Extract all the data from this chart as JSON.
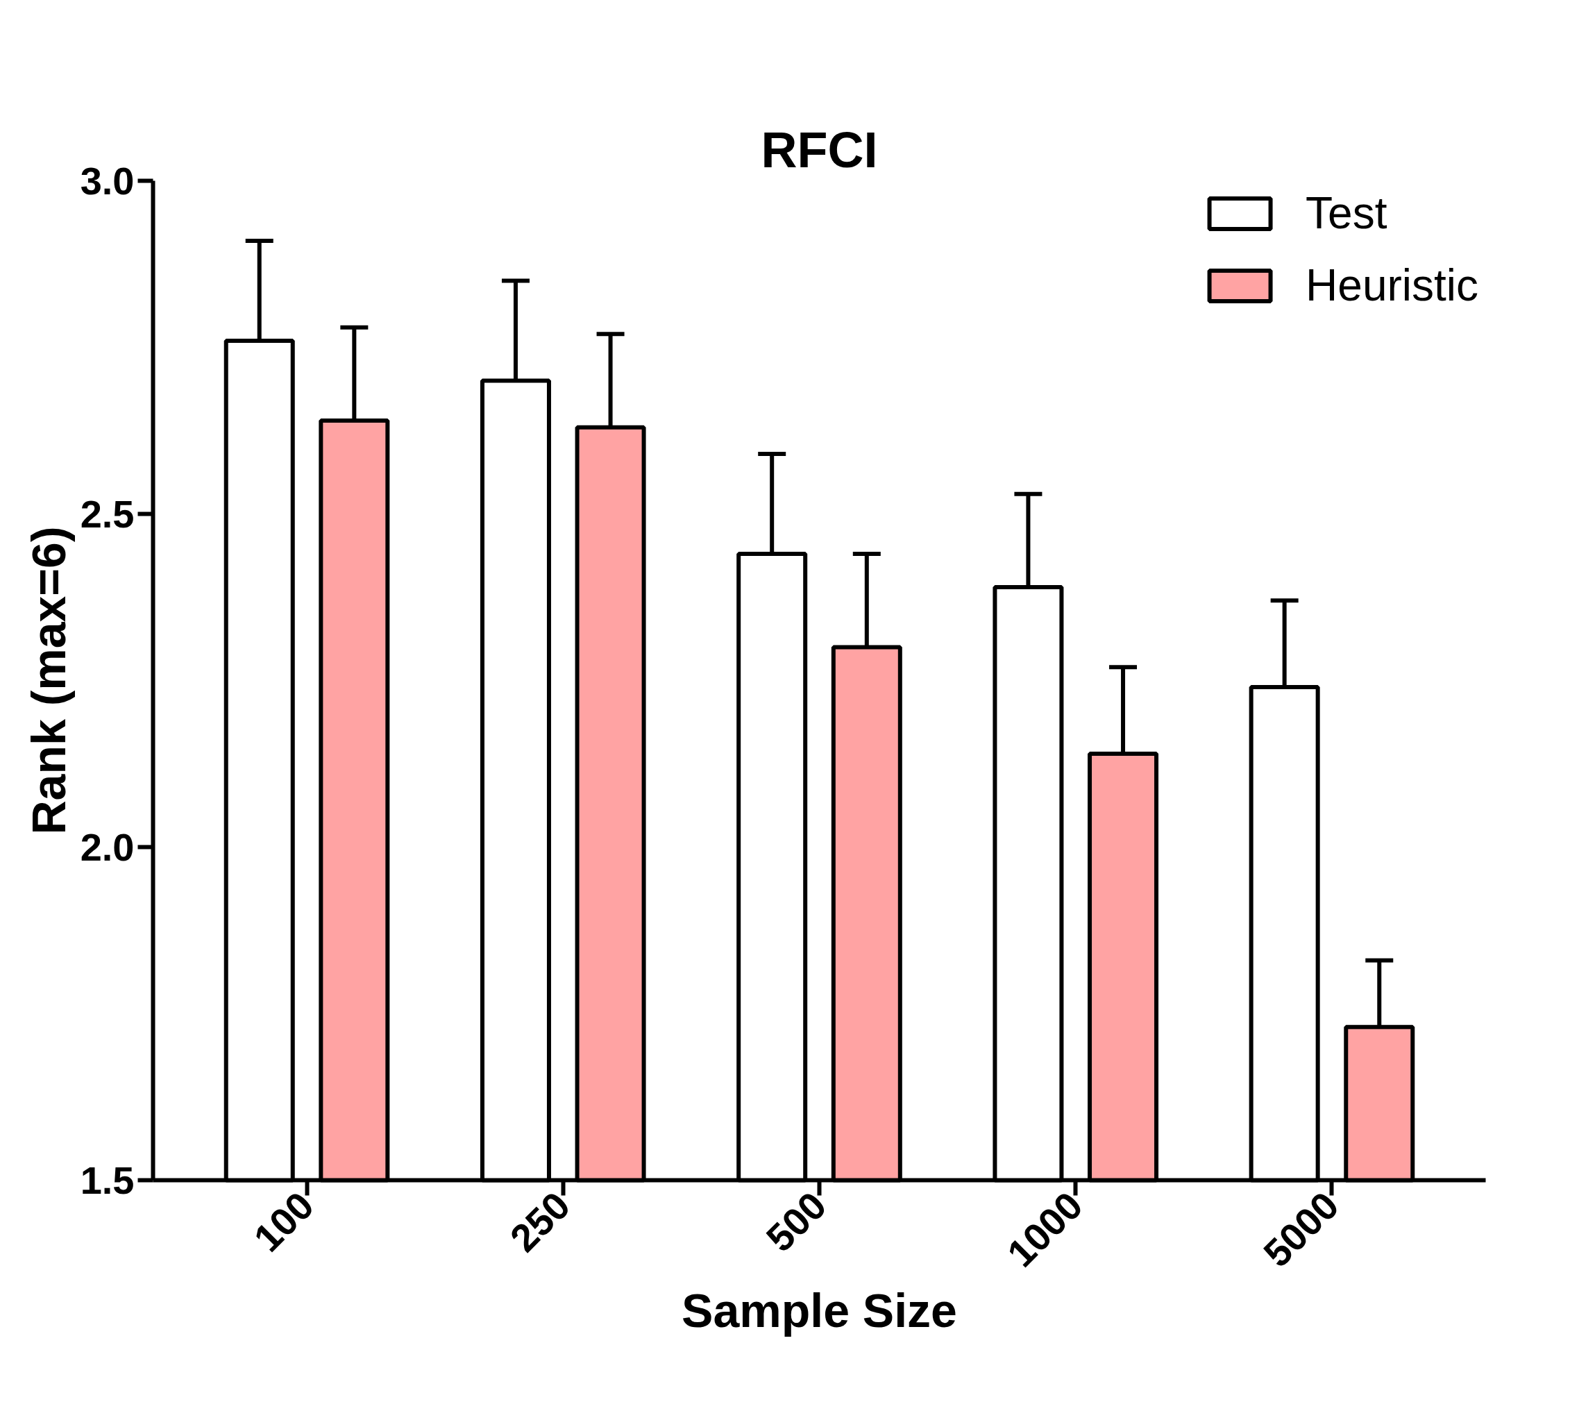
{
  "chart_data": {
    "type": "bar",
    "title": "RFCI",
    "xlabel": "Sample Size",
    "ylabel": "Rank (max=6)",
    "categories": [
      "100",
      "250",
      "500",
      "1000",
      "5000"
    ],
    "series": [
      {
        "name": "Test",
        "color": "#ffffff",
        "values": [
          2.76,
          2.7,
          2.44,
          2.39,
          2.24
        ],
        "errors": [
          [
            2.76,
            2.91
          ],
          [
            2.7,
            2.85
          ],
          [
            2.44,
            2.59
          ],
          [
            2.39,
            2.53
          ],
          [
            2.24,
            2.37
          ]
        ]
      },
      {
        "name": "Heuristic",
        "color": "#ffa3a3",
        "values": [
          2.64,
          2.63,
          2.3,
          2.14,
          1.73
        ],
        "errors": [
          [
            2.64,
            2.78
          ],
          [
            2.63,
            2.77
          ],
          [
            2.3,
            2.44
          ],
          [
            2.14,
            2.27
          ],
          [
            1.73,
            1.83
          ]
        ]
      }
    ],
    "ylim": [
      1.5,
      3.0
    ],
    "yticks": [
      {
        "value": 1.5,
        "label": "1.5"
      },
      {
        "value": 2.0,
        "label": "2.0"
      },
      {
        "value": 2.5,
        "label": "2.5"
      },
      {
        "value": 3.0,
        "label": "3.0"
      }
    ],
    "grid": false,
    "legend": "top right"
  }
}
